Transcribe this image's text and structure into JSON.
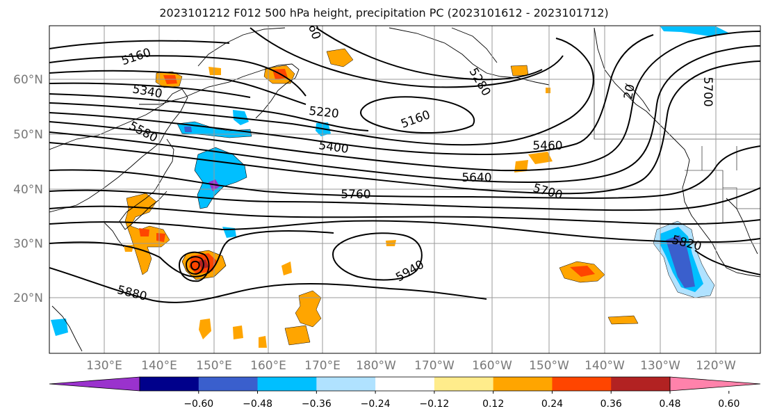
{
  "title": "2023101212 F012 500 hPa height, precipitation PC (2023101612 - 2023101712)",
  "map": {
    "lon_labels": [
      "130°E",
      "140°E",
      "150°E",
      "160°E",
      "170°E",
      "180°W",
      "170°W",
      "160°W",
      "150°W",
      "140°W",
      "130°W",
      "120°W"
    ],
    "lat_labels": [
      "60°N",
      "50°N",
      "40°N",
      "30°N",
      "20°N"
    ],
    "contour_labels": [
      "5160",
      "5340",
      "5580",
      "5220",
      "5160",
      "5400",
      "5460",
      "5640",
      "5760",
      "5700",
      "5820",
      "5940",
      "5880",
      "5280",
      "5700",
      "20",
      "60"
    ]
  },
  "colorbar": {
    "tick_labels": [
      "−0.60",
      "−0.48",
      "−0.36",
      "−0.24",
      "−0.12",
      "0.12",
      "0.24",
      "0.36",
      "0.48",
      "0.60"
    ],
    "colors": [
      "#9a32cd",
      "#00008b",
      "#3a5fcd",
      "#00bfff",
      "#b0e2ff",
      "#ffffff",
      "#ffec8b",
      "#ffa500",
      "#ff4500",
      "#b22222",
      "#ff82ab"
    ]
  },
  "fill_colors": {
    "light_blue": "#b0e2ff",
    "cyan": "#00bfff",
    "blue": "#3a5fcd",
    "purple": "#9a32cd",
    "yellow": "#ffec8b",
    "orange": "#ffa500",
    "red": "#ff4500",
    "dark_red": "#b22222"
  }
}
